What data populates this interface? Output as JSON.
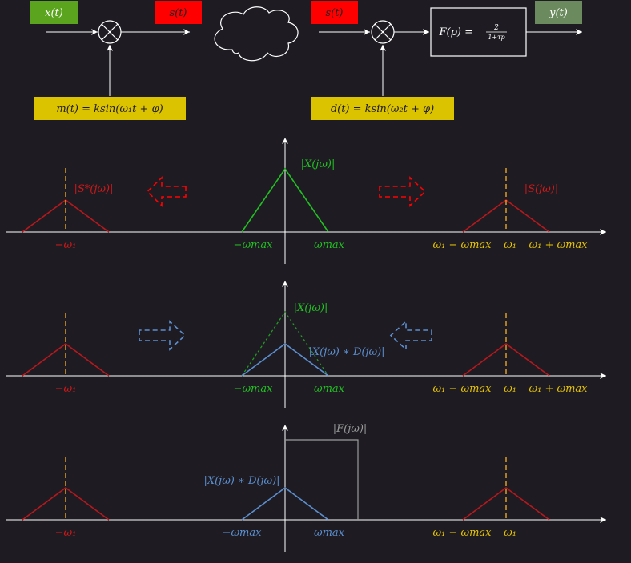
{
  "colors": {
    "background": "#1e1c22",
    "white": "#ffffff",
    "green_box": "#5aa51d",
    "red_box": "#ff0000",
    "yellow_box": "#dcc300",
    "gray_green_box": "#6b8b5e",
    "red_line": "#b8181c",
    "green_line": "#22c022",
    "blue_line": "#5b8fd0",
    "orange_dash": "#e8a52a",
    "yellow_text": "#e6c400",
    "red_text": "#d01818",
    "green_text": "#22c022",
    "blue_text": "#5b8fd0",
    "gray_text": "#9a9a9a"
  },
  "block_diagram": {
    "x_label": "x(t)",
    "s_label_left": "s(t)",
    "s_label_right": "s(t)",
    "y_label": "y(t)",
    "m_label": "m(t) = ksin(ω₁t + φ)",
    "d_label": "d(t) = ksin(ω₂t + φ)",
    "filter_label": "F(p) =",
    "filter_num": "2",
    "filter_den": "1+τp",
    "cloud_icon": "cloud-icon",
    "mixer_icon": "multiplier-icon"
  },
  "panels": [
    {
      "labels": {
        "left_peak": "|S*(jω)|",
        "center_peak": "|X(jω)|",
        "right_peak": "|S(jω)|",
        "neg_w1": "−ω₁",
        "neg_wmax": "−ωmax",
        "wmax": "ωmax",
        "w1_minus": "ω₁ − ωmax",
        "w1": "ω₁",
        "w1_plus": "ω₁ + ωmax"
      }
    },
    {
      "labels": {
        "center_peak": "|X(jω)|",
        "product": "|X(jω) ∗ D(jω)|",
        "neg_w1": "−ω₁",
        "neg_wmax": "−ωmax",
        "wmax": "ωmax",
        "w1_minus": "ω₁ − ωmax",
        "w1": "ω₁",
        "w1_plus": "ω₁ + ωmax"
      }
    },
    {
      "labels": {
        "filter": "|F(jω)|",
        "product": "|X(jω) ∗ D(jω)|",
        "neg_w1": "−ω₁",
        "neg_wmax": "−ωmax",
        "wmax": "ωmax",
        "w1_minus": "ω₁ − ωmax",
        "w1": "ω₁"
      }
    }
  ]
}
